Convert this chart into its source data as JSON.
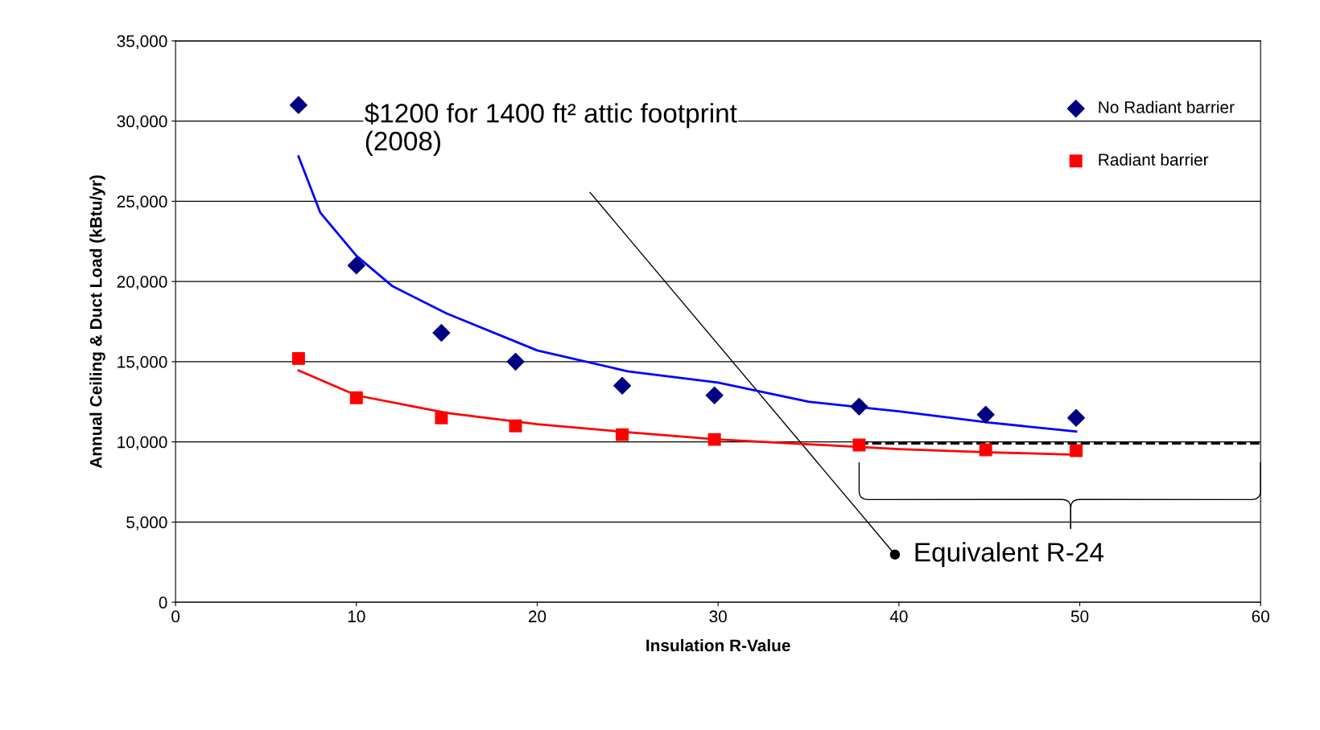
{
  "chart_data": {
    "type": "scatter",
    "xlabel": "Insulation R-Value",
    "ylabel": "Annual Ceiling & Duct Load (kBtu/yr)",
    "xlim": [
      0,
      60
    ],
    "xticks": [
      0,
      10,
      20,
      30,
      40,
      50,
      60
    ],
    "ylim": [
      0,
      35000
    ],
    "yticks": [
      {
        "value": 0,
        "label": "0"
      },
      {
        "value": 5000,
        "label": "5,000"
      },
      {
        "value": 10000,
        "label": "10,000"
      },
      {
        "value": 15000,
        "label": "15,000"
      },
      {
        "value": 20000,
        "label": "20,000"
      },
      {
        "value": 25000,
        "label": "25,000"
      },
      {
        "value": 30000,
        "label": "30,000"
      },
      {
        "value": 35000,
        "label": "35,000"
      }
    ],
    "grid": "y",
    "legend": "top right",
    "series": [
      {
        "name": "No Radiant barrier",
        "color": "#000080",
        "marker": "diamond",
        "x": [
          6.8,
          10,
          14.7,
          18.8,
          24.7,
          29.8,
          37.8,
          44.8,
          49.8
        ],
        "values": [
          31000,
          21000,
          16800,
          15000,
          13500,
          12900,
          12200,
          11700,
          11500
        ]
      },
      {
        "name": "Radiant barrier",
        "color": "#ff0000",
        "marker": "square",
        "x": [
          6.8,
          10,
          14.7,
          18.8,
          24.7,
          29.8,
          37.8,
          44.8,
          49.8
        ],
        "values": [
          15200,
          12750,
          11500,
          11000,
          10450,
          10150,
          9800,
          9500,
          9450
        ]
      },
      {
        "type": "line",
        "color": "#0000ff",
        "x": [
          6.8,
          8,
          10,
          12,
          15,
          20,
          25,
          30,
          35,
          40,
          45,
          49.8
        ],
        "values": [
          27800,
          24300,
          21600,
          19700,
          18000,
          15700,
          14400,
          13700,
          12500,
          11900,
          11200,
          10650
        ]
      },
      {
        "type": "line",
        "color": "#ff0000",
        "x": [
          6.8,
          10,
          15,
          20,
          25,
          30,
          35,
          40,
          45,
          49.8
        ],
        "values": [
          14450,
          12900,
          11800,
          11100,
          10600,
          10150,
          9850,
          9550,
          9350,
          9200
        ]
      },
      {
        "type": "line",
        "color": "#000000",
        "line_style": "dashed",
        "x": [
          37.8,
          60
        ],
        "values": [
          9900,
          9900
        ]
      }
    ],
    "annotations": [
      "$1200 for 1400 ft² attic footprint\n(2008)",
      "Equivalent R-24"
    ]
  }
}
